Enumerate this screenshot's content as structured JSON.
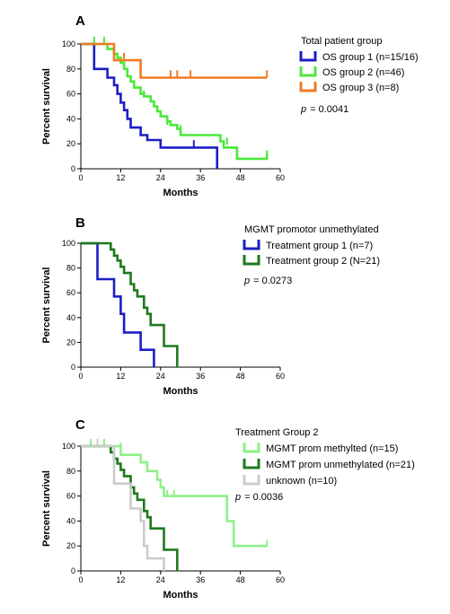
{
  "chart_data": [
    {
      "type": "line",
      "panel_label": "A",
      "legend_title": "Total patient group",
      "xlabel": "Months",
      "ylabel": "Percent survival",
      "xlim": [
        0,
        60
      ],
      "ylim": [
        0,
        100
      ],
      "xticks": [
        "0",
        "12",
        "24",
        "36",
        "48",
        "60"
      ],
      "yticks": [
        "0",
        "20",
        "40",
        "60",
        "80",
        "100"
      ],
      "p_prefix": "p",
      "p_value": "= 0.0041",
      "series": [
        {
          "name": "OS group 1 (n=15/16)",
          "color": "#1a1fc4",
          "steps": [
            [
              0,
              100
            ],
            [
              4,
              100
            ],
            [
              4,
              80
            ],
            [
              8,
              80
            ],
            [
              8,
              73
            ],
            [
              10,
              73
            ],
            [
              10,
              67
            ],
            [
              11,
              67
            ],
            [
              11,
              60
            ],
            [
              12,
              60
            ],
            [
              12,
              53
            ],
            [
              13,
              53
            ],
            [
              13,
              47
            ],
            [
              14,
              47
            ],
            [
              14,
              40
            ],
            [
              15,
              40
            ],
            [
              15,
              33
            ],
            [
              18,
              33
            ],
            [
              18,
              27
            ],
            [
              20,
              27
            ],
            [
              20,
              23
            ],
            [
              24,
              23
            ],
            [
              24,
              17
            ],
            [
              41,
              17
            ],
            [
              41,
              0
            ]
          ],
          "censored": [
            [
              34,
              20
            ]
          ]
        },
        {
          "name": "OS group 2 (n=46)",
          "color": "#4ce83a",
          "steps": [
            [
              0,
              100
            ],
            [
              8,
              100
            ],
            [
              8,
              96
            ],
            [
              10,
              96
            ],
            [
              10,
              92
            ],
            [
              11,
              92
            ],
            [
              11,
              89
            ],
            [
              12,
              89
            ],
            [
              12,
              85
            ],
            [
              13,
              85
            ],
            [
              13,
              80
            ],
            [
              14,
              80
            ],
            [
              14,
              74
            ],
            [
              15,
              74
            ],
            [
              15,
              70
            ],
            [
              16,
              70
            ],
            [
              16,
              65
            ],
            [
              18,
              65
            ],
            [
              18,
              60
            ],
            [
              19,
              60
            ],
            [
              19,
              58
            ],
            [
              21,
              58
            ],
            [
              21,
              54
            ],
            [
              22,
              54
            ],
            [
              22,
              50
            ],
            [
              23,
              50
            ],
            [
              23,
              46
            ],
            [
              24,
              46
            ],
            [
              24,
              42
            ],
            [
              26,
              42
            ],
            [
              26,
              38
            ],
            [
              27,
              38
            ],
            [
              27,
              35
            ],
            [
              29,
              35
            ],
            [
              29,
              32
            ],
            [
              30,
              32
            ],
            [
              30,
              27
            ],
            [
              42,
              27
            ],
            [
              42,
              22
            ],
            [
              43,
              22
            ],
            [
              43,
              17
            ],
            [
              47,
              17
            ],
            [
              47,
              8
            ],
            [
              56,
              8
            ],
            [
              56,
              12
            ]
          ],
          "censored": [
            [
              4,
              103
            ],
            [
              7,
              103
            ],
            [
              19,
              60
            ],
            [
              26,
              38
            ],
            [
              30,
              32
            ],
            [
              44,
              22
            ],
            [
              56,
              12
            ]
          ]
        },
        {
          "name": "OS group 3 (n=8)",
          "color": "#f07a25",
          "steps": [
            [
              0,
              100
            ],
            [
              10,
              100
            ],
            [
              10,
              87
            ],
            [
              18,
              87
            ],
            [
              18,
              73
            ],
            [
              56,
              73
            ]
          ],
          "censored": [
            [
              13,
              90
            ],
            [
              27,
              76
            ],
            [
              29,
              76
            ],
            [
              33,
              76
            ],
            [
              56,
              76
            ]
          ]
        }
      ]
    },
    {
      "type": "line",
      "panel_label": "B",
      "legend_title": "MGMT promotor unmethylated",
      "xlabel": "Months",
      "ylabel": "Percent survival",
      "xlim": [
        0,
        60
      ],
      "ylim": [
        0,
        100
      ],
      "xticks": [
        "0",
        "12",
        "24",
        "36",
        "48",
        "60"
      ],
      "yticks": [
        "0",
        "20",
        "40",
        "60",
        "80",
        "100"
      ],
      "p_prefix": "p",
      "p_value": "= 0.0273",
      "series": [
        {
          "name": "Treatment group 1 (n=7)",
          "color": "#1a1fc4",
          "steps": [
            [
              0,
              100
            ],
            [
              5,
              100
            ],
            [
              5,
              71
            ],
            [
              10,
              71
            ],
            [
              10,
              57
            ],
            [
              12,
              57
            ],
            [
              12,
              43
            ],
            [
              13,
              43
            ],
            [
              13,
              28
            ],
            [
              18,
              28
            ],
            [
              18,
              14
            ],
            [
              22,
              14
            ],
            [
              22,
              0
            ]
          ],
          "censored": []
        },
        {
          "name": "Treatment group 2 (N=21)",
          "color": "#1e7a1e",
          "steps": [
            [
              0,
              100
            ],
            [
              9,
              100
            ],
            [
              9,
              95
            ],
            [
              10,
              95
            ],
            [
              10,
              90
            ],
            [
              11,
              90
            ],
            [
              11,
              86
            ],
            [
              12,
              86
            ],
            [
              12,
              81
            ],
            [
              13,
              81
            ],
            [
              13,
              76
            ],
            [
              15,
              76
            ],
            [
              15,
              67
            ],
            [
              16,
              67
            ],
            [
              16,
              62
            ],
            [
              17,
              62
            ],
            [
              17,
              57
            ],
            [
              19,
              57
            ],
            [
              19,
              48
            ],
            [
              20,
              48
            ],
            [
              20,
              43
            ],
            [
              21,
              43
            ],
            [
              21,
              34
            ],
            [
              25,
              34
            ],
            [
              25,
              17
            ],
            [
              29,
              17
            ],
            [
              29,
              0
            ]
          ],
          "censored": []
        }
      ]
    },
    {
      "type": "line",
      "panel_label": "C",
      "legend_title": "Treatment Group 2",
      "xlabel": "Months",
      "ylabel": "Percent survival",
      "xlim": [
        0,
        60
      ],
      "ylim": [
        0,
        100
      ],
      "xticks": [
        "0",
        "12",
        "24",
        "36",
        "48",
        "60"
      ],
      "yticks": [
        "0",
        "20",
        "40",
        "60",
        "80",
        "100"
      ],
      "p_prefix": "p",
      "p_value": "= 0.0036",
      "series": [
        {
          "name": "MGMT prom methylted (n=15)",
          "color": "#8ef08a",
          "steps": [
            [
              0,
              100
            ],
            [
              12,
              100
            ],
            [
              12,
              93
            ],
            [
              18,
              93
            ],
            [
              18,
              87
            ],
            [
              20,
              87
            ],
            [
              20,
              80
            ],
            [
              23,
              80
            ],
            [
              23,
              73
            ],
            [
              24,
              73
            ],
            [
              24,
              67
            ],
            [
              25,
              67
            ],
            [
              25,
              60
            ],
            [
              44,
              60
            ],
            [
              44,
              40
            ],
            [
              46,
              40
            ],
            [
              46,
              20
            ],
            [
              56,
              20
            ]
          ],
          "censored": [
            [
              3,
              103
            ],
            [
              7,
              103
            ],
            [
              12,
              100
            ],
            [
              26,
              62
            ],
            [
              28,
              62
            ],
            [
              56,
              22
            ]
          ]
        },
        {
          "name": "MGMT prom unmethylated (n=21)",
          "color": "#1e7a1e",
          "steps": [
            [
              0,
              100
            ],
            [
              9,
              100
            ],
            [
              9,
              95
            ],
            [
              10,
              95
            ],
            [
              10,
              90
            ],
            [
              11,
              90
            ],
            [
              11,
              86
            ],
            [
              12,
              86
            ],
            [
              12,
              81
            ],
            [
              13,
              81
            ],
            [
              13,
              76
            ],
            [
              15,
              76
            ],
            [
              15,
              67
            ],
            [
              16,
              67
            ],
            [
              16,
              62
            ],
            [
              17,
              62
            ],
            [
              17,
              57
            ],
            [
              19,
              57
            ],
            [
              19,
              48
            ],
            [
              20,
              48
            ],
            [
              20,
              43
            ],
            [
              21,
              43
            ],
            [
              21,
              34
            ],
            [
              25,
              34
            ],
            [
              25,
              17
            ],
            [
              29,
              17
            ],
            [
              29,
              0
            ]
          ],
          "censored": []
        },
        {
          "name": "unknown (n=10)",
          "color": "#cccccc",
          "steps": [
            [
              0,
              100
            ],
            [
              10,
              100
            ],
            [
              10,
              70
            ],
            [
              15,
              70
            ],
            [
              15,
              50
            ],
            [
              18,
              50
            ],
            [
              18,
              40
            ],
            [
              19,
              40
            ],
            [
              19,
              20
            ],
            [
              20,
              20
            ],
            [
              20,
              10
            ],
            [
              25,
              10
            ],
            [
              25,
              0
            ]
          ],
          "censored": [
            [
              5,
              103
            ],
            [
              18,
              45
            ]
          ]
        }
      ]
    }
  ]
}
